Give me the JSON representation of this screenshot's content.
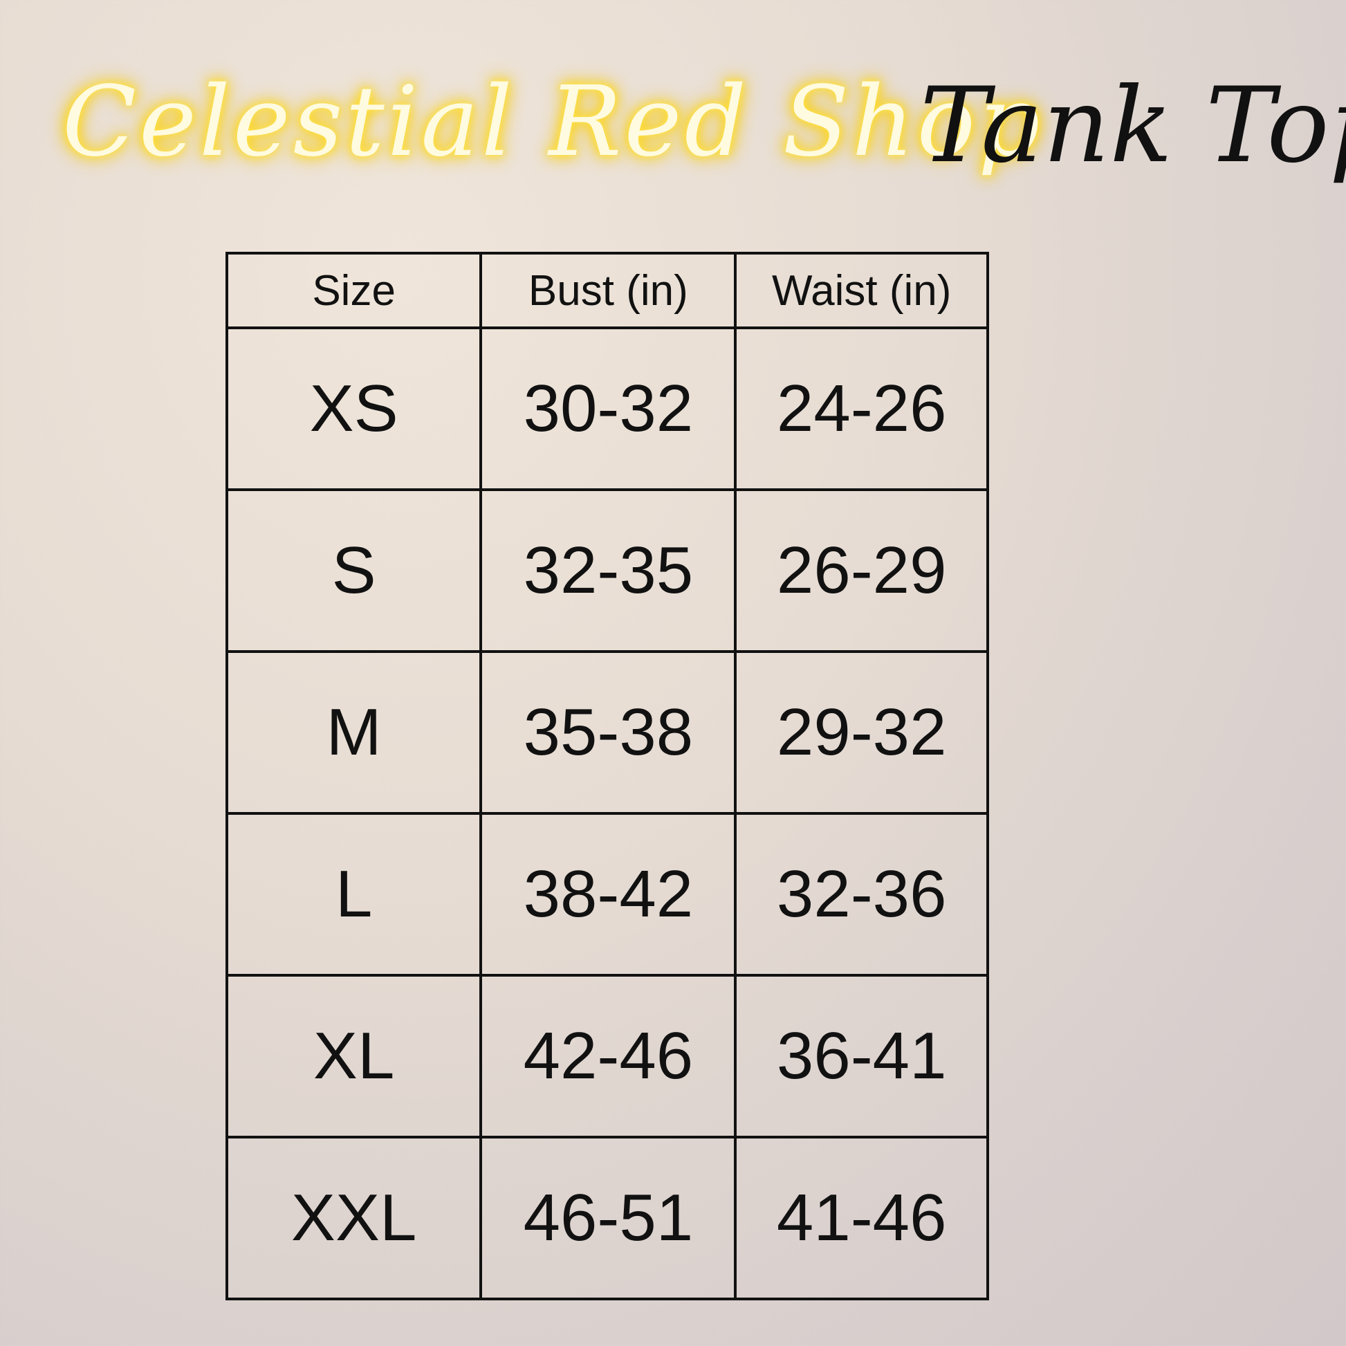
{
  "title": {
    "brand": "Celestial Red Shop",
    "product": "Tank Top",
    "brand_color": "#fff3a0"
  },
  "table": {
    "headers": [
      "Size",
      "Bust (in)",
      "Waist (in)"
    ],
    "rows": [
      [
        "XS",
        "30-32",
        "24-26"
      ],
      [
        "S",
        "32-35",
        "26-29"
      ],
      [
        "M",
        "35-38",
        "29-32"
      ],
      [
        "L",
        "38-42",
        "32-36"
      ],
      [
        "XL",
        "42-46",
        "36-41"
      ],
      [
        "XXL",
        "46-51",
        "41-46"
      ]
    ]
  }
}
